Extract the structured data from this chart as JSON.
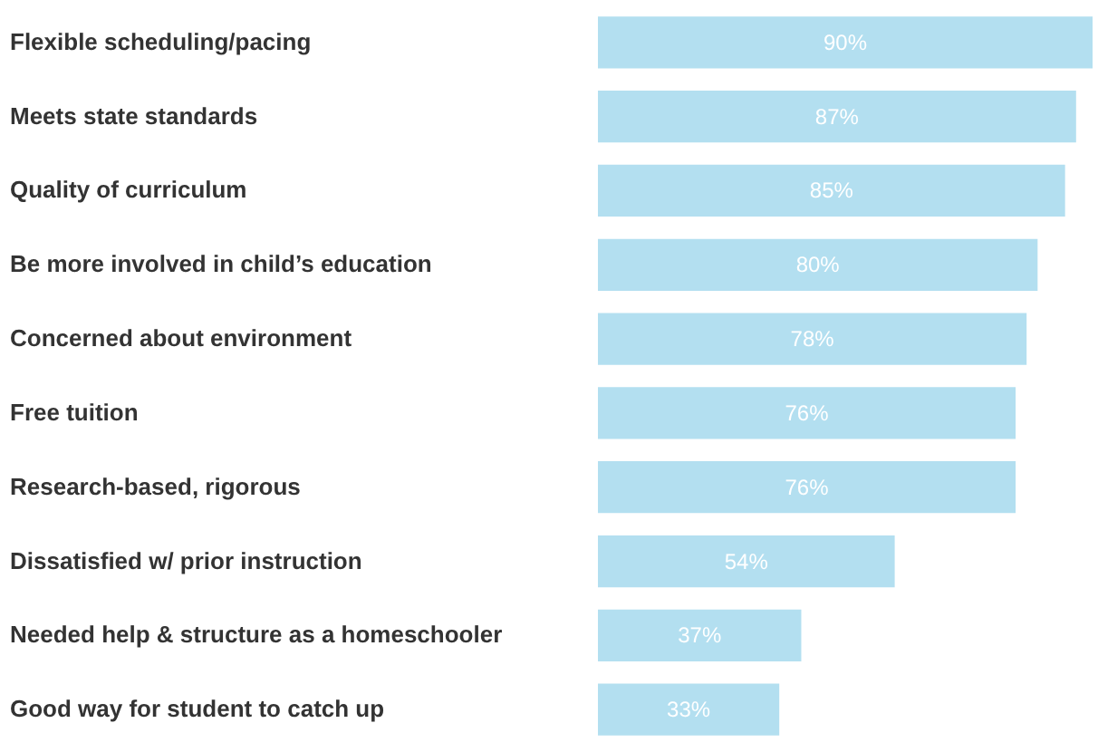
{
  "chart_data": {
    "type": "bar",
    "orientation": "horizontal",
    "categories": [
      "Flexible scheduling/pacing",
      "Meets state standards",
      "Quality of curriculum",
      "Be more involved in child’s education",
      "Concerned about environment",
      "Free tuition",
      "Research-based, rigorous",
      "Dissatisfied w/ prior instruction",
      "Needed help & structure as a homeschooler",
      "Good way for  student to catch up"
    ],
    "values": [
      90,
      87,
      85,
      80,
      78,
      76,
      76,
      54,
      37,
      33
    ],
    "value_labels": [
      "90%",
      "87%",
      "85%",
      "80%",
      "78%",
      "76%",
      "76%",
      "54%",
      "37%",
      "33%"
    ],
    "color": "#b3dff0",
    "grid": false
  }
}
